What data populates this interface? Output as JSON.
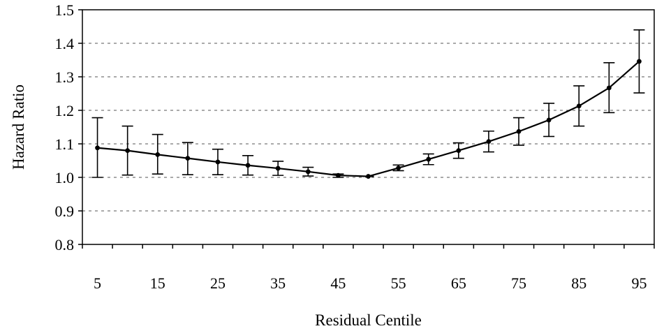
{
  "chart_data": {
    "type": "line",
    "xlabel": "Residual Centile",
    "ylabel": "Hazard Ratio",
    "ylim": [
      0.8,
      1.5
    ],
    "yticks": [
      "0.8",
      "0.9",
      "1.0",
      "1.1",
      "1.2",
      "1.3",
      "1.4",
      "1.5"
    ],
    "x_tick_labels": [
      "5",
      "15",
      "25",
      "35",
      "45",
      "55",
      "65",
      "75",
      "85",
      "95"
    ],
    "grid": "horizontal dotted",
    "x": [
      5,
      10,
      15,
      20,
      25,
      30,
      35,
      40,
      45,
      50,
      55,
      60,
      65,
      70,
      75,
      80,
      85,
      90,
      95
    ],
    "series": [
      {
        "values": [
          1.088,
          1.08,
          1.068,
          1.057,
          1.046,
          1.036,
          1.027,
          1.017,
          1.006,
          1.003,
          1.028,
          1.054,
          1.08,
          1.107,
          1.137,
          1.171,
          1.213,
          1.267,
          1.346
        ],
        "lower": [
          1.0,
          1.007,
          1.01,
          1.008,
          1.008,
          1.007,
          1.006,
          1.004,
          1.0,
          1.003,
          1.02,
          1.038,
          1.057,
          1.076,
          1.096,
          1.122,
          1.153,
          1.193,
          1.252
        ],
        "upper": [
          1.178,
          1.153,
          1.128,
          1.104,
          1.084,
          1.065,
          1.048,
          1.03,
          1.01,
          1.003,
          1.037,
          1.07,
          1.103,
          1.138,
          1.178,
          1.221,
          1.273,
          1.342,
          1.44
        ]
      }
    ],
    "colors": {
      "line": "#000000",
      "grid": "#555555",
      "axis": "#000000"
    }
  }
}
